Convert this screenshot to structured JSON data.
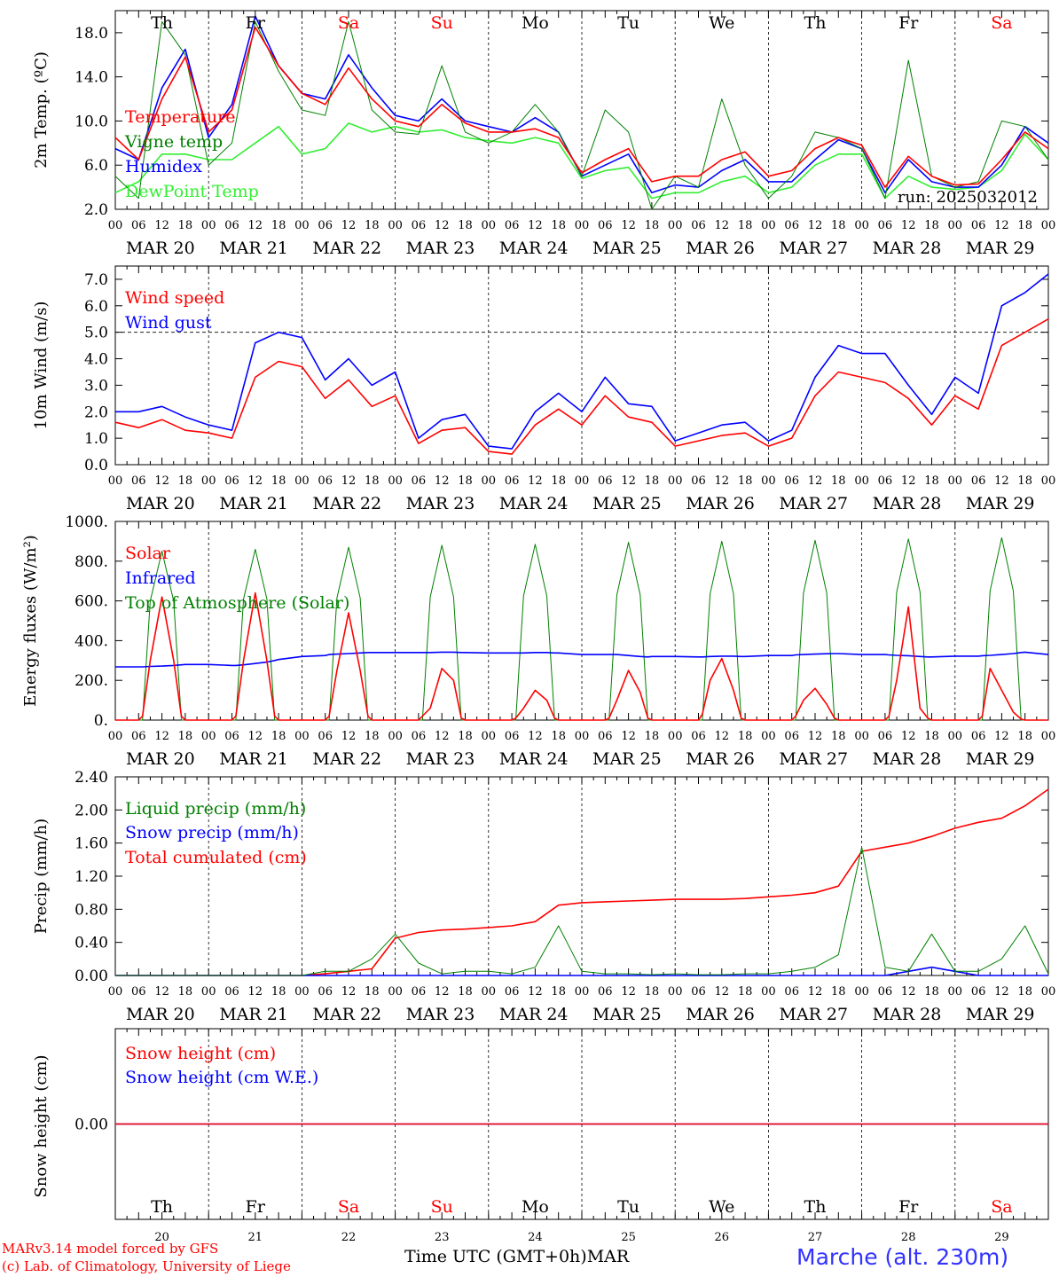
{
  "run_label": "run: 2025032012",
  "footer": {
    "model": "MARv3.14 model forced by GFS",
    "credit": "(c) Lab. of Climatology, University of Liege",
    "xaxis_title": "Time UTC (GMT+0h)",
    "month": "MAR",
    "station": "Marche (alt. 230m)"
  },
  "colors": {
    "red": "#ff0000",
    "blue": "#0000ff",
    "green": "#008000",
    "lightgreen": "#33ee33",
    "weekend": "#ff0000",
    "weekday": "#000000"
  },
  "time_axis": {
    "hour_ticks": [
      "00",
      "06",
      "12",
      "18"
    ],
    "days": [
      {
        "date": "MAR 20",
        "short": "20",
        "weekday": "Th",
        "weekend": false
      },
      {
        "date": "MAR 21",
        "short": "21",
        "weekday": "Fr",
        "weekend": false
      },
      {
        "date": "MAR 22",
        "short": "22",
        "weekday": "Sa",
        "weekend": true
      },
      {
        "date": "MAR 23",
        "short": "23",
        "weekday": "Su",
        "weekend": true
      },
      {
        "date": "MAR 24",
        "short": "24",
        "weekday": "Mo",
        "weekend": false
      },
      {
        "date": "MAR 25",
        "short": "25",
        "weekday": "Tu",
        "weekend": false
      },
      {
        "date": "MAR 26",
        "short": "26",
        "weekday": "We",
        "weekend": false
      },
      {
        "date": "MAR 27",
        "short": "27",
        "weekday": "Th",
        "weekend": false
      },
      {
        "date": "MAR 28",
        "short": "28",
        "weekday": "Fr",
        "weekend": false
      },
      {
        "date": "MAR 29",
        "short": "29",
        "weekday": "Sa",
        "weekend": true
      }
    ]
  },
  "chart_data": [
    {
      "id": "temperature",
      "type": "line",
      "ylabel": "2m Temp. (ºC)",
      "ylim": [
        2,
        20
      ],
      "yticks": [
        2,
        6,
        10,
        14,
        18
      ],
      "ytick_labels": [
        "2.0",
        "6.0",
        "10.0",
        "14.0",
        "18.0"
      ],
      "x": [
        0,
        6,
        12,
        18,
        24,
        30,
        36,
        42,
        48,
        54,
        60,
        66,
        72,
        78,
        84,
        90,
        96,
        102,
        108,
        114,
        120,
        126,
        132,
        138,
        144,
        150,
        156,
        162,
        168,
        174,
        180,
        186,
        192,
        198,
        204,
        210,
        216,
        222,
        228,
        234,
        240
      ],
      "series": [
        {
          "name": "Temperature",
          "color": "#ff0000",
          "values": [
            8.5,
            6.5,
            12.0,
            15.8,
            9.0,
            11.0,
            18.5,
            15.0,
            12.5,
            11.5,
            14.8,
            12.0,
            10.0,
            9.5,
            11.5,
            9.8,
            9.0,
            9.0,
            9.3,
            8.5,
            5.3,
            6.5,
            7.5,
            4.5,
            5.0,
            5.0,
            6.5,
            7.2,
            5.0,
            5.5,
            7.5,
            8.5,
            7.8,
            4.0,
            6.8,
            5.0,
            4.2,
            4.3,
            6.5,
            9.0,
            7.5
          ]
        },
        {
          "name": "Vigne temp",
          "color": "#008000",
          "values": [
            5.0,
            3.0,
            19.0,
            16.0,
            6.0,
            8.0,
            19.0,
            14.5,
            11.0,
            10.5,
            19.0,
            11.0,
            9.0,
            8.8,
            15.0,
            9.0,
            8.0,
            9.0,
            11.5,
            9.0,
            5.0,
            11.0,
            9.0,
            2.0,
            5.0,
            4.0,
            12.0,
            6.0,
            3.0,
            5.0,
            9.0,
            8.5,
            7.5,
            3.0,
            15.5,
            5.0,
            4.0,
            4.5,
            10.0,
            9.5,
            6.5
          ]
        },
        {
          "name": "Humidex",
          "color": "#0000ff",
          "values": [
            7.5,
            6.5,
            13.0,
            16.5,
            8.5,
            11.5,
            19.5,
            15.0,
            12.5,
            12.0,
            16.0,
            13.0,
            10.5,
            10.0,
            12.0,
            10.0,
            9.5,
            9.0,
            10.3,
            9.0,
            5.0,
            6.0,
            7.0,
            3.5,
            4.2,
            4.0,
            5.5,
            6.5,
            4.5,
            4.5,
            6.5,
            8.3,
            7.5,
            3.5,
            6.5,
            4.5,
            4.0,
            4.0,
            6.0,
            9.5,
            8.0
          ]
        },
        {
          "name": "DewPoint Temp",
          "color": "#33ee33",
          "values": [
            3.5,
            4.5,
            7.0,
            7.0,
            6.5,
            6.5,
            8.0,
            9.5,
            7.0,
            7.5,
            9.8,
            9.0,
            9.5,
            9.0,
            9.2,
            8.5,
            8.2,
            8.0,
            8.5,
            8.0,
            4.8,
            5.5,
            5.8,
            3.0,
            3.5,
            3.5,
            4.5,
            5.0,
            3.5,
            4.0,
            6.0,
            7.0,
            7.0,
            3.0,
            5.0,
            4.0,
            3.8,
            4.0,
            5.5,
            8.8,
            6.5
          ]
        }
      ]
    },
    {
      "id": "wind",
      "type": "line",
      "ylabel": "10m Wind (m/s)",
      "ylim": [
        0,
        7.5
      ],
      "yticks": [
        0,
        1,
        2,
        3,
        4,
        5,
        6,
        7
      ],
      "ytick_labels": [
        "0.0",
        "1.0",
        "2.0",
        "3.0",
        "4.0",
        "5.0",
        "6.0",
        "7.0"
      ],
      "reference_line": 5.0,
      "x": [
        0,
        6,
        12,
        18,
        24,
        30,
        36,
        42,
        48,
        54,
        60,
        66,
        72,
        78,
        84,
        90,
        96,
        102,
        108,
        114,
        120,
        126,
        132,
        138,
        144,
        150,
        156,
        162,
        168,
        174,
        180,
        186,
        192,
        198,
        204,
        210,
        216,
        222,
        228,
        234,
        240
      ],
      "series": [
        {
          "name": "Wind speed",
          "color": "#ff0000",
          "values": [
            1.6,
            1.4,
            1.7,
            1.3,
            1.2,
            1.0,
            3.3,
            3.9,
            3.7,
            2.5,
            3.2,
            2.2,
            2.6,
            0.8,
            1.3,
            1.4,
            0.5,
            0.4,
            1.5,
            2.1,
            1.5,
            2.6,
            1.8,
            1.6,
            0.7,
            0.9,
            1.1,
            1.2,
            0.7,
            1.0,
            2.6,
            3.5,
            3.3,
            3.1,
            2.5,
            1.5,
            2.6,
            2.1,
            4.5,
            5.0,
            5.5
          ]
        },
        {
          "name": "Wind gust",
          "color": "#0000ff",
          "values": [
            2.0,
            2.0,
            2.2,
            1.8,
            1.5,
            1.3,
            4.6,
            5.0,
            4.8,
            3.2,
            4.0,
            3.0,
            3.5,
            1.0,
            1.7,
            1.9,
            0.7,
            0.6,
            2.0,
            2.7,
            2.0,
            3.3,
            2.3,
            2.2,
            0.9,
            1.2,
            1.5,
            1.6,
            0.9,
            1.3,
            3.3,
            4.5,
            4.2,
            4.2,
            3.0,
            1.9,
            3.3,
            2.7,
            6.0,
            6.5,
            7.2
          ]
        }
      ]
    },
    {
      "id": "energy",
      "type": "line",
      "ylabel": "Energy fluxes (W/m²)",
      "ylim": [
        0,
        1000
      ],
      "yticks": [
        0,
        200,
        400,
        600,
        800,
        1000
      ],
      "ytick_labels": [
        "0.",
        "200.",
        "400.",
        "600.",
        "800.",
        "1000."
      ],
      "x": [
        0,
        6,
        7,
        9,
        12,
        15,
        17,
        18,
        24,
        30,
        31,
        33,
        36,
        39,
        41,
        42,
        48,
        54,
        55,
        57,
        60,
        63,
        65,
        66,
        72,
        78,
        79,
        81,
        84,
        87,
        89,
        90,
        96,
        102,
        103,
        105,
        108,
        111,
        113,
        114,
        120,
        126,
        127,
        129,
        132,
        135,
        137,
        138,
        144,
        150,
        151,
        153,
        156,
        159,
        161,
        162,
        168,
        174,
        175,
        177,
        180,
        183,
        185,
        186,
        192,
        198,
        199,
        201,
        204,
        207,
        209,
        210,
        216,
        222,
        223,
        225,
        228,
        231,
        233,
        234,
        240
      ],
      "series": [
        {
          "name": "Solar",
          "color": "#ff0000",
          "values": [
            0,
            0,
            20,
            300,
            620,
            300,
            20,
            0,
            0,
            0,
            20,
            300,
            640,
            300,
            20,
            0,
            0,
            0,
            20,
            250,
            540,
            250,
            20,
            0,
            0,
            0,
            20,
            60,
            260,
            200,
            10,
            0,
            0,
            0,
            10,
            60,
            150,
            100,
            10,
            0,
            0,
            0,
            10,
            100,
            250,
            140,
            10,
            0,
            0,
            0,
            30,
            200,
            310,
            150,
            10,
            0,
            0,
            0,
            20,
            100,
            160,
            80,
            10,
            0,
            0,
            0,
            20,
            200,
            570,
            60,
            10,
            0,
            0,
            0,
            20,
            260,
            150,
            40,
            5,
            0,
            0
          ]
        },
        {
          "name": "Infrared",
          "color": "#0000ff",
          "values": [
            268,
            268,
            268,
            270,
            272,
            275,
            278,
            280,
            280,
            275,
            275,
            278,
            285,
            292,
            300,
            305,
            320,
            325,
            330,
            332,
            335,
            338,
            340,
            340,
            340,
            340,
            340,
            340,
            342,
            342,
            340,
            340,
            338,
            338,
            338,
            338,
            340,
            340,
            338,
            338,
            330,
            330,
            330,
            330,
            325,
            320,
            318,
            320,
            320,
            318,
            318,
            320,
            322,
            322,
            320,
            320,
            325,
            325,
            328,
            330,
            332,
            334,
            335,
            335,
            330,
            330,
            328,
            326,
            324,
            320,
            318,
            318,
            322,
            322,
            324,
            326,
            330,
            335,
            340,
            342,
            330
          ]
        },
        {
          "name": "Top of Atmosphere (Solar)",
          "color": "#008000",
          "values": [
            0,
            0,
            0,
            600,
            850,
            600,
            0,
            0,
            0,
            0,
            0,
            610,
            860,
            610,
            0,
            0,
            0,
            0,
            0,
            615,
            870,
            615,
            0,
            0,
            0,
            0,
            0,
            620,
            880,
            620,
            0,
            0,
            0,
            0,
            0,
            625,
            885,
            625,
            0,
            0,
            0,
            0,
            0,
            630,
            895,
            630,
            0,
            0,
            0,
            0,
            0,
            635,
            900,
            635,
            0,
            0,
            0,
            0,
            0,
            640,
            905,
            640,
            0,
            0,
            0,
            0,
            0,
            645,
            912,
            645,
            0,
            0,
            0,
            0,
            0,
            650,
            918,
            650,
            0,
            0,
            0
          ]
        }
      ]
    },
    {
      "id": "precip",
      "type": "line",
      "ylabel": "Precip (mm/h)",
      "ylim": [
        0,
        2.4
      ],
      "yticks": [
        0,
        0.4,
        0.8,
        1.2,
        1.6,
        2.0,
        2.4
      ],
      "ytick_labels": [
        "0.00",
        "0.40",
        "0.80",
        "1.20",
        "1.60",
        "2.00",
        "2.40"
      ],
      "x": [
        0,
        6,
        12,
        18,
        24,
        30,
        36,
        42,
        48,
        54,
        60,
        66,
        72,
        78,
        84,
        90,
        96,
        102,
        108,
        114,
        120,
        126,
        132,
        138,
        144,
        150,
        156,
        162,
        168,
        174,
        180,
        186,
        192,
        198,
        204,
        210,
        216,
        222,
        228,
        234,
        240
      ],
      "series": [
        {
          "name": "Liquid precip (mm/h)",
          "color": "#008000",
          "values": [
            0,
            0,
            0,
            0,
            0,
            0,
            0,
            0,
            0,
            0.05,
            0.05,
            0.2,
            0.5,
            0.15,
            0.02,
            0.05,
            0.05,
            0.02,
            0.1,
            0.6,
            0.05,
            0.02,
            0.02,
            0.01,
            0.02,
            0.01,
            0.01,
            0.02,
            0.02,
            0.05,
            0.1,
            0.25,
            1.55,
            0.1,
            0.05,
            0.5,
            0.05,
            0.05,
            0.2,
            0.6,
            0.02
          ]
        },
        {
          "name": "Snow precip (mm/h)",
          "color": "#0000ff",
          "values": [
            0,
            0,
            0,
            0,
            0,
            0,
            0,
            0,
            0,
            0,
            0,
            0,
            0,
            0,
            0,
            0,
            0,
            0,
            0,
            0,
            0,
            0,
            0,
            0,
            0,
            0,
            0,
            0,
            0,
            0,
            0,
            0,
            0,
            0,
            0.05,
            0.1,
            0.05,
            0,
            0,
            0,
            0
          ]
        },
        {
          "name": "Total cumulated (cm)",
          "color": "#ff0000",
          "values": [
            0,
            0,
            0,
            0,
            0,
            0,
            0,
            0,
            0,
            0.02,
            0.05,
            0.08,
            0.45,
            0.52,
            0.55,
            0.56,
            0.58,
            0.6,
            0.65,
            0.85,
            0.88,
            0.89,
            0.9,
            0.91,
            0.92,
            0.92,
            0.92,
            0.93,
            0.95,
            0.97,
            1.0,
            1.08,
            1.5,
            1.55,
            1.6,
            1.68,
            1.78,
            1.85,
            1.9,
            2.05,
            2.25
          ]
        }
      ]
    },
    {
      "id": "snow",
      "type": "line",
      "ylabel": "Snow height (cm)",
      "ylim": [
        -1,
        1
      ],
      "yticks": [
        0
      ],
      "ytick_labels": [
        "0.00"
      ],
      "x": [
        0,
        240
      ],
      "series": [
        {
          "name": "Snow height (cm)",
          "color": "#ff0000",
          "values": [
            0,
            0
          ]
        },
        {
          "name": "Snow height (cm W.E.)",
          "color": "#0000ff",
          "values": [
            0,
            0
          ]
        }
      ]
    }
  ]
}
